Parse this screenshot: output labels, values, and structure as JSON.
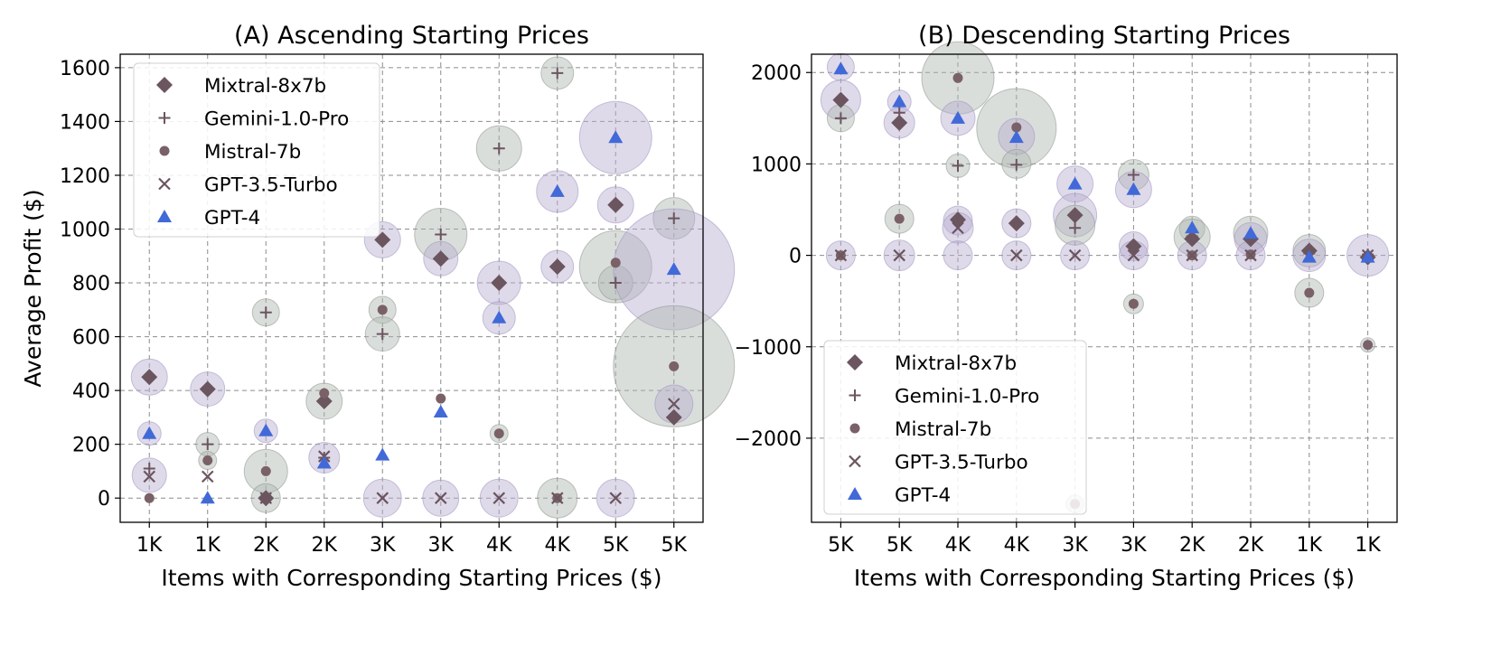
{
  "legend": {
    "entries": [
      {
        "name": "Mixtral-8x7b",
        "marker": "diamond",
        "color": "#6b555f"
      },
      {
        "name": "Gemini-1.0-Pro",
        "marker": "plus",
        "color": "#6b555f"
      },
      {
        "name": "Mistral-7b",
        "marker": "circle",
        "color": "#7a6167"
      },
      {
        "name": "GPT-3.5-Turbo",
        "marker": "x",
        "color": "#6b555f"
      },
      {
        "name": "GPT-4",
        "marker": "triangle",
        "color": "#4169d8"
      }
    ],
    "bubble_colors": {
      "purple": "#b8add0",
      "gray": "#aeb5b0"
    }
  },
  "chart_data": [
    {
      "type": "scatter",
      "title": "(A) Ascending Starting Prices",
      "xlabel": "Items with Corresponding Starting Prices ($)",
      "ylabel": "Average Profit ($)",
      "categories": [
        "1K",
        "1K",
        "2K",
        "2K",
        "3K",
        "3K",
        "4K",
        "4K",
        "5K",
        "5K"
      ],
      "ylim": [
        -90,
        1650
      ],
      "yticks": [
        0,
        200,
        400,
        600,
        800,
        1000,
        1200,
        1400,
        1600
      ],
      "grid": true,
      "legend_position": "upper-left",
      "series": [
        {
          "name": "Mixtral-8x7b",
          "values": [
            450,
            405,
            0,
            360,
            960,
            890,
            800,
            860,
            1090,
            300
          ]
        },
        {
          "name": "Gemini-1.0-Pro",
          "values": [
            110,
            200,
            690,
            150,
            610,
            980,
            1300,
            1580,
            800,
            1040
          ]
        },
        {
          "name": "Mistral-7b",
          "values": [
            0,
            140,
            100,
            390,
            700,
            370,
            240,
            0,
            875,
            490
          ]
        },
        {
          "name": "GPT-3.5-Turbo",
          "values": [
            80,
            80,
            0,
            155,
            0,
            0,
            0,
            0,
            0,
            350
          ]
        },
        {
          "name": "GPT-4",
          "values": [
            240,
            0,
            250,
            130,
            160,
            320,
            670,
            1140,
            1340,
            850
          ]
        }
      ],
      "bubbles": [
        {
          "x": 0,
          "y": 450,
          "r": 20,
          "c": "purple"
        },
        {
          "x": 0,
          "y": 85,
          "r": 19,
          "c": "purple"
        },
        {
          "x": 0,
          "y": 240,
          "r": 13,
          "c": "purple"
        },
        {
          "x": 1,
          "y": 405,
          "r": 19,
          "c": "purple"
        },
        {
          "x": 1,
          "y": 200,
          "r": 13,
          "c": "gray"
        },
        {
          "x": 1,
          "y": 140,
          "r": 10,
          "c": "gray"
        },
        {
          "x": 2,
          "y": 690,
          "r": 15,
          "c": "gray"
        },
        {
          "x": 2,
          "y": 100,
          "r": 24,
          "c": "gray"
        },
        {
          "x": 2,
          "y": 0,
          "r": 16,
          "c": "gray"
        },
        {
          "x": 2,
          "y": 250,
          "r": 13,
          "c": "purple"
        },
        {
          "x": 3,
          "y": 360,
          "r": 20,
          "c": "gray"
        },
        {
          "x": 3,
          "y": 150,
          "r": 17,
          "c": "purple"
        },
        {
          "x": 4,
          "y": 960,
          "r": 20,
          "c": "purple"
        },
        {
          "x": 4,
          "y": 700,
          "r": 15,
          "c": "gray"
        },
        {
          "x": 4,
          "y": 610,
          "r": 19,
          "c": "gray"
        },
        {
          "x": 4,
          "y": 0,
          "r": 21,
          "c": "purple"
        },
        {
          "x": 5,
          "y": 980,
          "r": 29,
          "c": "gray"
        },
        {
          "x": 5,
          "y": 890,
          "r": 19,
          "c": "purple"
        },
        {
          "x": 5,
          "y": 0,
          "r": 20,
          "c": "purple"
        },
        {
          "x": 6,
          "y": 1300,
          "r": 25,
          "c": "gray"
        },
        {
          "x": 6,
          "y": 800,
          "r": 24,
          "c": "purple"
        },
        {
          "x": 6,
          "y": 670,
          "r": 18,
          "c": "purple"
        },
        {
          "x": 6,
          "y": 240,
          "r": 10,
          "c": "gray"
        },
        {
          "x": 6,
          "y": 0,
          "r": 21,
          "c": "purple"
        },
        {
          "x": 7,
          "y": 1580,
          "r": 18,
          "c": "gray"
        },
        {
          "x": 7,
          "y": 1140,
          "r": 23,
          "c": "purple"
        },
        {
          "x": 7,
          "y": 860,
          "r": 18,
          "c": "purple"
        },
        {
          "x": 7,
          "y": 0,
          "r": 22,
          "c": "gray"
        },
        {
          "x": 8,
          "y": 1340,
          "r": 40,
          "c": "purple"
        },
        {
          "x": 8,
          "y": 1090,
          "r": 20,
          "c": "purple"
        },
        {
          "x": 8,
          "y": 860,
          "r": 40,
          "c": "gray"
        },
        {
          "x": 8,
          "y": 800,
          "r": 19,
          "c": "gray"
        },
        {
          "x": 8,
          "y": 0,
          "r": 21,
          "c": "purple"
        },
        {
          "x": 9,
          "y": 1040,
          "r": 23,
          "c": "gray"
        },
        {
          "x": 9,
          "y": 850,
          "r": 67,
          "c": "purple"
        },
        {
          "x": 9,
          "y": 490,
          "r": 67,
          "c": "gray"
        },
        {
          "x": 9,
          "y": 350,
          "r": 21,
          "c": "purple"
        }
      ]
    },
    {
      "type": "scatter",
      "title": "(B) Descending Starting Prices",
      "xlabel": "Items with Corresponding Starting Prices ($)",
      "ylabel": "",
      "categories": [
        "5K",
        "5K",
        "4K",
        "4K",
        "3K",
        "3K",
        "2K",
        "2K",
        "1K",
        "1K"
      ],
      "ylim": [
        -2920,
        2200
      ],
      "yticks": [
        -2000,
        -1000,
        0,
        1000,
        2000
      ],
      "grid": true,
      "legend_position": "lower-left",
      "series": [
        {
          "name": "Mixtral-8x7b",
          "values": [
            1700,
            1450,
            390,
            350,
            440,
            100,
            180,
            180,
            50,
            -20
          ]
        },
        {
          "name": "Gemini-1.0-Pro",
          "values": [
            1500,
            1560,
            980,
            990,
            300,
            880,
            210,
            200,
            20,
            10
          ]
        },
        {
          "name": "Mistral-7b",
          "values": [
            0,
            400,
            1940,
            1400,
            -2720,
            -530,
            0,
            10,
            -410,
            -980
          ]
        },
        {
          "name": "GPT-3.5-Turbo",
          "values": [
            0,
            0,
            300,
            0,
            0,
            0,
            0,
            0,
            0,
            0
          ]
        },
        {
          "name": "GPT-4",
          "values": [
            2040,
            1680,
            1500,
            1290,
            780,
            720,
            300,
            240,
            -20,
            -20
          ]
        }
      ],
      "bubbles": [
        {
          "x": 0,
          "y": 2060,
          "r": 15,
          "c": "purple"
        },
        {
          "x": 0,
          "y": 1700,
          "r": 22,
          "c": "purple"
        },
        {
          "x": 0,
          "y": 1500,
          "r": 15,
          "c": "gray"
        },
        {
          "x": 0,
          "y": 0,
          "r": 16,
          "c": "purple"
        },
        {
          "x": 1,
          "y": 1680,
          "r": 13,
          "c": "purple"
        },
        {
          "x": 1,
          "y": 1450,
          "r": 17,
          "c": "purple"
        },
        {
          "x": 1,
          "y": 400,
          "r": 16,
          "c": "gray"
        },
        {
          "x": 1,
          "y": 0,
          "r": 17,
          "c": "purple"
        },
        {
          "x": 2,
          "y": 1940,
          "r": 40,
          "c": "gray"
        },
        {
          "x": 2,
          "y": 1500,
          "r": 19,
          "c": "purple"
        },
        {
          "x": 2,
          "y": 980,
          "r": 13,
          "c": "gray"
        },
        {
          "x": 2,
          "y": 380,
          "r": 16,
          "c": "purple"
        },
        {
          "x": 2,
          "y": 300,
          "r": 17,
          "c": "purple"
        },
        {
          "x": 2,
          "y": 0,
          "r": 16,
          "c": "purple"
        },
        {
          "x": 3,
          "y": 1390,
          "r": 44,
          "c": "gray"
        },
        {
          "x": 3,
          "y": 1300,
          "r": 20,
          "c": "purple"
        },
        {
          "x": 3,
          "y": 1000,
          "r": 16,
          "c": "gray"
        },
        {
          "x": 3,
          "y": 350,
          "r": 16,
          "c": "purple"
        },
        {
          "x": 3,
          "y": 0,
          "r": 16,
          "c": "purple"
        },
        {
          "x": 4,
          "y": 780,
          "r": 20,
          "c": "purple"
        },
        {
          "x": 4,
          "y": 440,
          "r": 24,
          "c": "purple"
        },
        {
          "x": 4,
          "y": 330,
          "r": 22,
          "c": "gray"
        },
        {
          "x": 4,
          "y": 0,
          "r": 16,
          "c": "purple"
        },
        {
          "x": 4,
          "y": -2720,
          "r": 10,
          "c": "gray"
        },
        {
          "x": 5,
          "y": 880,
          "r": 17,
          "c": "gray"
        },
        {
          "x": 5,
          "y": 720,
          "r": 20,
          "c": "purple"
        },
        {
          "x": 5,
          "y": 100,
          "r": 16,
          "c": "purple"
        },
        {
          "x": 5,
          "y": 0,
          "r": 16,
          "c": "purple"
        },
        {
          "x": 5,
          "y": -530,
          "r": 11,
          "c": "gray"
        },
        {
          "x": 6,
          "y": 290,
          "r": 14,
          "c": "gray"
        },
        {
          "x": 6,
          "y": 200,
          "r": 20,
          "c": "gray"
        },
        {
          "x": 6,
          "y": 0,
          "r": 16,
          "c": "purple"
        },
        {
          "x": 7,
          "y": 240,
          "r": 19,
          "c": "gray"
        },
        {
          "x": 7,
          "y": 180,
          "r": 18,
          "c": "purple"
        },
        {
          "x": 7,
          "y": 0,
          "r": 16,
          "c": "purple"
        },
        {
          "x": 8,
          "y": 50,
          "r": 18,
          "c": "gray"
        },
        {
          "x": 8,
          "y": 0,
          "r": 18,
          "c": "purple"
        },
        {
          "x": 8,
          "y": -410,
          "r": 16,
          "c": "gray"
        },
        {
          "x": 9,
          "y": 0,
          "r": 23,
          "c": "purple"
        },
        {
          "x": 9,
          "y": -980,
          "r": 8,
          "c": "gray"
        }
      ]
    }
  ]
}
